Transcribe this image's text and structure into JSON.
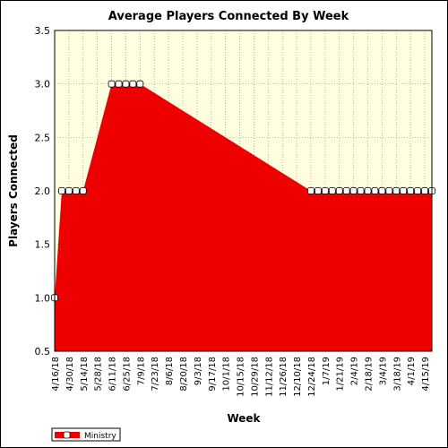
{
  "chart_data": {
    "type": "area",
    "title": "Average Players Connected By Week",
    "xlabel": "Week",
    "ylabel": "Players Connected",
    "ylim": [
      0.5,
      3.5
    ],
    "yticks": [
      "0.5",
      "1.0",
      "1.5",
      "2.0",
      "2.5",
      "3.0",
      "3.5"
    ],
    "x_tick_labels": [
      "4/16/18",
      "4/30/18",
      "5/14/18",
      "5/28/18",
      "6/11/18",
      "6/25/18",
      "7/9/18",
      "7/23/18",
      "8/6/18",
      "8/20/18",
      "9/3/18",
      "9/17/18",
      "10/1/18",
      "10/15/18",
      "10/29/18",
      "11/12/18",
      "11/26/18",
      "12/10/18",
      "12/24/18",
      "1/7/19",
      "1/21/19",
      "2/4/19",
      "2/18/19",
      "3/4/19",
      "3/18/19",
      "4/1/19",
      "4/15/19"
    ],
    "grid": true,
    "legend_position": "bottom-left",
    "colors": {
      "area": "#ee0000",
      "plot_bg": "#ffffe0",
      "grid": "#999999",
      "marker_fill": "#ffffff"
    },
    "series": [
      {
        "name": "Ministry",
        "points": [
          {
            "x": "4/16/18",
            "y": 1
          },
          {
            "x": "4/23/18",
            "y": 2
          },
          {
            "x": "4/30/18",
            "y": 2
          },
          {
            "x": "5/7/18",
            "y": 2
          },
          {
            "x": "5/14/18",
            "y": 2
          },
          {
            "x": "6/11/18",
            "y": 3
          },
          {
            "x": "6/18/18",
            "y": 3
          },
          {
            "x": "6/25/18",
            "y": 3
          },
          {
            "x": "7/2/18",
            "y": 3
          },
          {
            "x": "7/9/18",
            "y": 3
          },
          {
            "x": "12/24/18",
            "y": 2
          },
          {
            "x": "12/31/18",
            "y": 2
          },
          {
            "x": "1/7/19",
            "y": 2
          },
          {
            "x": "1/14/19",
            "y": 2
          },
          {
            "x": "1/21/19",
            "y": 2
          },
          {
            "x": "1/28/19",
            "y": 2
          },
          {
            "x": "2/4/19",
            "y": 2
          },
          {
            "x": "2/11/19",
            "y": 2
          },
          {
            "x": "2/18/19",
            "y": 2
          },
          {
            "x": "2/25/19",
            "y": 2
          },
          {
            "x": "3/4/19",
            "y": 2
          },
          {
            "x": "3/11/19",
            "y": 2
          },
          {
            "x": "3/18/19",
            "y": 2
          },
          {
            "x": "3/25/19",
            "y": 2
          },
          {
            "x": "4/1/19",
            "y": 2
          },
          {
            "x": "4/8/19",
            "y": 2
          },
          {
            "x": "4/15/19",
            "y": 2
          },
          {
            "x": "4/22/19",
            "y": 2
          }
        ]
      }
    ]
  }
}
